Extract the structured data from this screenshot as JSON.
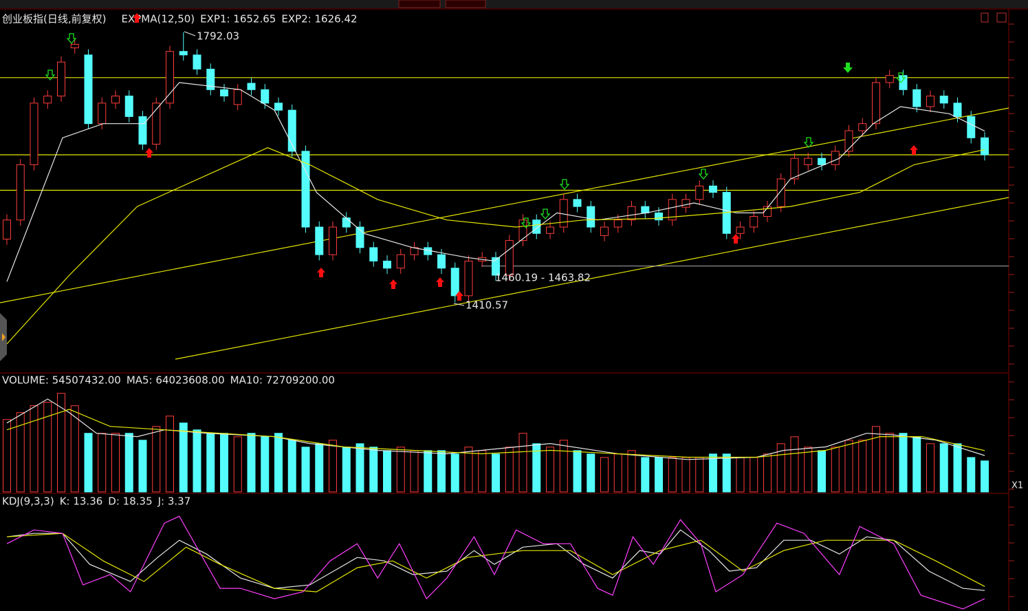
{
  "chart_data": [
    {
      "type": "candlestick",
      "title": "创业板指(日线,前复权)",
      "indicator": "EXPMA(12,50)",
      "open": [
        1500,
        1527,
        1605,
        1692,
        1702,
        1770,
        1760,
        1663,
        1692,
        1702,
        1673,
        1634,
        1692,
        1765,
        1760,
        1740,
        1711,
        1690,
        1720,
        1711,
        1692,
        1682,
        1624,
        1517,
        1478,
        1530,
        1517,
        1488,
        1469,
        1459,
        1478,
        1488,
        1478,
        1459,
        1420,
        1469,
        1474,
        1449,
        1498,
        1527,
        1508,
        1517,
        1556,
        1546,
        1505,
        1517,
        1527,
        1546,
        1537,
        1527,
        1545,
        1556,
        1575,
        1566,
        1508,
        1517,
        1532,
        1546,
        1585,
        1605,
        1614,
        1605,
        1624,
        1653,
        1663,
        1721,
        1731,
        1711,
        1687,
        1702,
        1692,
        1673,
        1643
      ],
      "high": [
        1535,
        1613,
        1700,
        1710,
        1758,
        1783,
        1768,
        1700,
        1710,
        1710,
        1681,
        1700,
        1773,
        1792.03,
        1768,
        1748,
        1719,
        1719,
        1728,
        1719,
        1700,
        1690,
        1632,
        1525,
        1525,
        1538,
        1525,
        1496,
        1477,
        1486,
        1496,
        1496,
        1486,
        1467,
        1477,
        1482,
        1482,
        1506,
        1535,
        1535,
        1525,
        1564,
        1564,
        1554,
        1525,
        1535,
        1554,
        1554,
        1545,
        1564,
        1564,
        1583,
        1583,
        1574,
        1525,
        1540,
        1554,
        1593,
        1622,
        1622,
        1622,
        1632,
        1661,
        1671,
        1729,
        1739,
        1739,
        1719,
        1710,
        1710,
        1700,
        1681,
        1651
      ],
      "low": [
        1492,
        1519,
        1597,
        1684,
        1694,
        1762,
        1655,
        1655,
        1684,
        1665,
        1626,
        1626,
        1684,
        1752,
        1732,
        1703,
        1694,
        1682,
        1703,
        1684,
        1674,
        1616,
        1509,
        1470,
        1470,
        1509,
        1480,
        1461,
        1451,
        1451,
        1470,
        1470,
        1451,
        1410.57,
        1412,
        1461,
        1441,
        1441,
        1490,
        1500,
        1500,
        1509,
        1538,
        1509,
        1497,
        1509,
        1519,
        1529,
        1519,
        1519,
        1537,
        1548,
        1558,
        1500,
        1500,
        1509,
        1524,
        1538,
        1577,
        1597,
        1597,
        1597,
        1616,
        1645,
        1655,
        1713,
        1703,
        1679,
        1679,
        1684,
        1665,
        1635,
        1611
      ],
      "close": [
        1527,
        1605,
        1692,
        1702,
        1750,
        1775,
        1663,
        1692,
        1702,
        1673,
        1634,
        1692,
        1765,
        1760,
        1740,
        1711,
        1702,
        1711,
        1711,
        1692,
        1682,
        1624,
        1517,
        1478,
        1517,
        1517,
        1488,
        1469,
        1459,
        1478,
        1488,
        1478,
        1459,
        1420,
        1469,
        1474,
        1449,
        1498,
        1527,
        1508,
        1517,
        1556,
        1546,
        1517,
        1517,
        1527,
        1546,
        1537,
        1527,
        1556,
        1556,
        1575,
        1566,
        1508,
        1517,
        1532,
        1546,
        1585,
        1614,
        1614,
        1605,
        1624,
        1653,
        1663,
        1721,
        1731,
        1711,
        1687,
        1702,
        1692,
        1673,
        1643,
        1619
      ],
      "up_color": "#ff3c3c",
      "down_color": "#54fcfc",
      "ylim": [
        1313,
        1823
      ],
      "series": [
        {
          "name": "EXP1: 1652.65",
          "color": "#e8e8e8",
          "x": [
            0,
            4.1,
            7.1,
            10.1,
            12.7,
            17.2,
            19.7,
            22.8,
            26.3,
            29.9,
            33.9,
            35.9,
            38.5,
            40.5,
            43.5,
            47.1,
            50.6,
            53.7,
            55.7,
            57.7,
            61.3,
            63.8,
            65.8,
            69.4,
            72
          ],
          "values": [
            1440,
            1643,
            1663,
            1663,
            1721,
            1711,
            1682,
            1566,
            1508,
            1488,
            1474,
            1469,
            1508,
            1537,
            1527,
            1537,
            1551,
            1537,
            1537,
            1585,
            1614,
            1663,
            1687,
            1677,
            1652.65
          ]
        },
        {
          "name": "EXP2: 1626.42",
          "color": "#e8e800",
          "x": [
            0,
            4.6,
            9.6,
            19.2,
            22.3,
            27.3,
            32.4,
            37.5,
            42.5,
            47.6,
            52.7,
            57.7,
            62.8,
            66.8,
            72
          ],
          "values": [
            1352,
            1449,
            1546,
            1629,
            1605,
            1556,
            1527,
            1517,
            1527,
            1529,
            1537,
            1546,
            1566,
            1605,
            1626.42
          ]
        }
      ],
      "levels": [
        1728,
        1619,
        1569
      ],
      "level_color": "#e8e800",
      "support": 1462,
      "support_color": "#b0b0b0",
      "annotations": [
        "1792.03",
        "1410.57",
        "1460.19 - 1463.82"
      ]
    },
    {
      "type": "bar",
      "name": "VOLUME: 54507432.00",
      "values": [
        127000000,
        139200000,
        151300000,
        157300000,
        173000000,
        151300000,
        102900000,
        102900000,
        102900000,
        102900000,
        90800000,
        114900000,
        133100000,
        121000000,
        108900000,
        102900000,
        102900000,
        96800000,
        102900000,
        96800000,
        102900000,
        90800000,
        78700000,
        84700000,
        90800000,
        78700000,
        84700000,
        78700000,
        72600000,
        78700000,
        72600000,
        72600000,
        72600000,
        66600000,
        78700000,
        72600000,
        66600000,
        78700000,
        102900000,
        84700000,
        78700000,
        90800000,
        72600000,
        66600000,
        60500000,
        66600000,
        72600000,
        60500000,
        60500000,
        60500000,
        60500000,
        60500000,
        66600000,
        66600000,
        60500000,
        60500000,
        66600000,
        84700000,
        96800000,
        78700000,
        72600000,
        78700000,
        90800000,
        90800000,
        114900000,
        102900000,
        102900000,
        96800000,
        84700000,
        84700000,
        84700000,
        60500000,
        54507432
      ],
      "ylim": [
        0,
        175000000
      ],
      "series": [
        {
          "name": "MA5: 64023608.00",
          "color": "#e8e8e8",
          "x": [
            0,
            3,
            4.6,
            6.6,
            9.6,
            11.6,
            14.7,
            19.7,
            22.3,
            27.3,
            32.4,
            37.5,
            40,
            45,
            50.1,
            55.2,
            57.2,
            60.3,
            63.3,
            65.3,
            68.4,
            72
          ],
          "values": [
            121000000,
            163000000,
            139000000,
            103000000,
            97000000,
            109000000,
            103000000,
            97000000,
            85000000,
            73000000,
            67000000,
            79000000,
            85000000,
            67000000,
            57000000,
            61000000,
            73000000,
            79000000,
            103000000,
            100000000,
            91000000,
            64023608
          ]
        },
        {
          "name": "MA10: 72709200.00",
          "color": "#e8e800",
          "x": [
            0,
            4.6,
            7.6,
            11.6,
            19.7,
            24.8,
            29.9,
            35,
            40,
            45,
            50.1,
            55.2,
            60.3,
            64.3,
            67.4,
            72
          ],
          "values": [
            109000000,
            145000000,
            115000000,
            109000000,
            97000000,
            79000000,
            73000000,
            67000000,
            73000000,
            67000000,
            61000000,
            61000000,
            73000000,
            97000000,
            97000000,
            72709200
          ]
        }
      ],
      "corner_label": "X1"
    },
    {
      "type": "line",
      "title": "KDJ(9,3,3)",
      "ylim": [
        -10,
        112
      ],
      "series": [
        {
          "name": "K: 13.36",
          "color": "#e8e8e8",
          "x": [
            0,
            2,
            4.1,
            6.1,
            9.1,
            11.1,
            12.7,
            14.7,
            17.2,
            19.7,
            22.3,
            25.8,
            27.8,
            29.9,
            32.4,
            34.4,
            35.9,
            38,
            40.5,
            42.5,
            44.6,
            46.6,
            48.1,
            49.6,
            51.7,
            53.2,
            55.2,
            57.2,
            59.2,
            61.3,
            63.3,
            65.3,
            67.9,
            70.4,
            72
          ],
          "values": [
            79,
            83.2,
            83.2,
            45.4,
            24.4,
            53.8,
            74.8,
            58,
            28.6,
            16,
            20.2,
            53.8,
            49.6,
            32.8,
            37,
            62.2,
            45.4,
            66.4,
            70.6,
            45.4,
            28.6,
            62.2,
            58,
            87.4,
            62.2,
            37,
            41.2,
            74.8,
            74.8,
            58,
            79,
            74.8,
            37,
            16,
            13.36
          ]
        },
        {
          "name": "D: 18.35",
          "color": "#e8e800",
          "x": [
            0,
            4.1,
            7.1,
            10.1,
            13.2,
            15.7,
            19.7,
            22.8,
            25.8,
            28.4,
            30.9,
            33.9,
            38,
            41.5,
            44.6,
            48.1,
            51.1,
            54.2,
            57.2,
            60.3,
            63.3,
            65.3,
            68.4,
            72
          ],
          "values": [
            79,
            83.2,
            49.6,
            24.4,
            66.4,
            45.4,
            16,
            11.8,
            41.2,
            49.6,
            28.6,
            53.8,
            62.2,
            62.2,
            32.8,
            62.2,
            74.8,
            37,
            62.2,
            74.8,
            74.8,
            74.8,
            49.6,
            18.35
          ]
        },
        {
          "name": "J: 3.37",
          "color": "#ff40ff",
          "x": [
            0,
            2,
            4.1,
            5.6,
            7.6,
            9.1,
            11.6,
            12.7,
            14.7,
            15.7,
            17.2,
            19.7,
            21.8,
            23.8,
            25.8,
            27.3,
            28.9,
            30.9,
            32.4,
            34.4,
            35.9,
            37.5,
            39.5,
            41.5,
            43.5,
            44.6,
            46.1,
            47.6,
            49.6,
            51.1,
            52.2,
            54.2,
            56.7,
            58.7,
            61.3,
            62.8,
            65.3,
            67.3,
            70.4,
            72
          ],
          "values": [
            70.6,
            87.4,
            83.2,
            20.2,
            32.8,
            11.8,
            95.8,
            104.2,
            45.4,
            16,
            16,
            3.4,
            11.8,
            49.6,
            70.6,
            28.6,
            70.6,
            3.4,
            28.6,
            79,
            32.8,
            87.4,
            70.6,
            70.6,
            16,
            7.6,
            79,
            45.4,
            100,
            70.6,
            11.8,
            32.8,
            95.8,
            83.2,
            32.8,
            91.6,
            70.6,
            7.6,
            -9.2,
            3.37
          ]
        }
      ]
    }
  ]
}
